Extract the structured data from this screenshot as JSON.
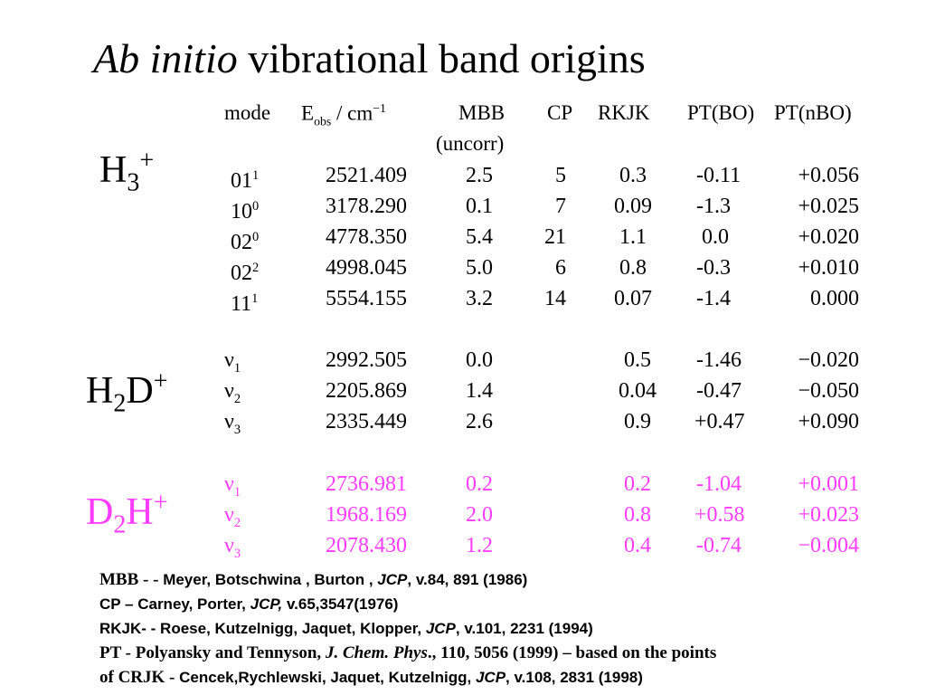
{
  "title": {
    "italic": "Ab initio",
    "rest": " vibrational band origins"
  },
  "headers": {
    "mode": "mode",
    "eobs": "E",
    "eobs_sub": "obs",
    "eobs_unit": " / cm",
    "eobs_unit_sup": "−1",
    "mbb": "MBB",
    "mbb_note": "(uncorr)",
    "cp": "CP",
    "rkjk": "RKJK",
    "ptbo": "PT(BO)",
    "ptnbo": "PT(nBO)"
  },
  "colors": {
    "default": "#000000",
    "d2h": "#ff3cff"
  },
  "sections": [
    {
      "species": "H",
      "species_sub": "3",
      "species_rest": "",
      "species_sup": "+",
      "color": "#000000",
      "rows": [
        {
          "mode": "01",
          "sup": "1",
          "eobs": "2521.409",
          "mbb": "2.5",
          "cp": "5",
          "rkjk": "0.3",
          "ptbo": "-0.11",
          "ptnbo": "+0.056"
        },
        {
          "mode": "10",
          "sup": "0",
          "eobs": "3178.290",
          "mbb": "0.1",
          "cp": "7",
          "rkjk": "0.09",
          "ptbo": "-1.3",
          "ptnbo": "+0.025"
        },
        {
          "mode": "02",
          "sup": "0",
          "eobs": "4778.350",
          "mbb": "5.4",
          "cp": "21",
          "rkjk": "1.1",
          "ptbo": "0.0",
          "ptnbo": "+0.020"
        },
        {
          "mode": "02",
          "sup": "2",
          "eobs": "4998.045",
          "mbb": "5.0",
          "cp": "6",
          "rkjk": "0.8",
          "ptbo": "-0.3",
          "ptnbo": "+0.010"
        },
        {
          "mode": "11",
          "sup": "1",
          "eobs": "5554.155",
          "mbb": "3.2",
          "cp": "14",
          "rkjk": "0.07",
          "ptbo": "-1.4",
          "ptnbo": "0.000"
        }
      ]
    },
    {
      "species": "H",
      "species_sub": "2",
      "species_rest": "D",
      "species_sup": "+",
      "color": "#000000",
      "rows": [
        {
          "mode": "ν",
          "sub": "1",
          "eobs": "2992.505",
          "mbb": "0.0",
          "cp": "",
          "rkjk": "0.5",
          "ptbo": "-1.46",
          "ptnbo": "−0.020"
        },
        {
          "mode": "ν",
          "sub": "2",
          "eobs": "2205.869",
          "mbb": "1.4",
          "cp": "",
          "rkjk": "0.04",
          "ptbo": "-0.47",
          "ptnbo": "−0.050"
        },
        {
          "mode": "ν",
          "sub": "3",
          "eobs": "2335.449",
          "mbb": "2.6",
          "cp": "",
          "rkjk": "0.9",
          "ptbo": "+0.47",
          "ptnbo": "+0.090"
        }
      ]
    },
    {
      "species": "D",
      "species_sub": "2",
      "species_rest": "H",
      "species_sup": "+",
      "color": "#ff3cff",
      "rows": [
        {
          "mode": "ν",
          "sub": "1",
          "eobs": "2736.981",
          "mbb": "0.2",
          "cp": "",
          "rkjk": "0.2",
          "ptbo": "-1.04",
          "ptnbo": "+0.001"
        },
        {
          "mode": "ν",
          "sub": "2",
          "eobs": "1968.169",
          "mbb": "2.0",
          "cp": "",
          "rkjk": "0.8",
          "ptbo": "+0.58",
          "ptnbo": "+0.023"
        },
        {
          "mode": "ν",
          "sub": "3",
          "eobs": "2078.430",
          "mbb": "1.2",
          "cp": "",
          "rkjk": "0.4",
          "ptbo": "-0.74",
          "ptnbo": "−0.004"
        }
      ]
    }
  ],
  "references": [
    {
      "parts": [
        {
          "t": "MBB - - ",
          "s": "ser"
        },
        {
          "t": "Meyer, Botschwina , Burton , "
        },
        {
          "t": "JCP",
          "i": true
        },
        {
          "t": ",  v.84, 891  (1986)"
        }
      ]
    },
    {
      "parts": [
        {
          "t": "CP – Carney, Porter,  "
        },
        {
          "t": "JCP,",
          "i": true
        },
        {
          "t": "  v.65,3547(1976)"
        }
      ]
    },
    {
      "parts": [
        {
          "t": "RKJK- -  Roese, Kutzelnigg, Jaquet, Klopper, "
        },
        {
          "t": "JCP",
          "i": true
        },
        {
          "t": ", v.101, 2231 (1994)"
        }
      ]
    },
    {
      "parts": [
        {
          "t": "PT -  Polyansky and  Tennyson,  ",
          "s": "ser"
        },
        {
          "t": "J. Chem. Phys",
          "s": "ser",
          "i": true
        },
        {
          "t": "., 110, 5056 (1999) – based on the points",
          "s": "ser"
        }
      ]
    },
    {
      "parts": [
        {
          "t": "of  CRJK - ",
          "s": "ser"
        },
        {
          "t": "Cencek,Rychlewski, Jaquet, Kutzelnigg, "
        },
        {
          "t": "JCP",
          "i": true
        },
        {
          "t": ", v.108, 2831 (1998)"
        }
      ]
    }
  ]
}
